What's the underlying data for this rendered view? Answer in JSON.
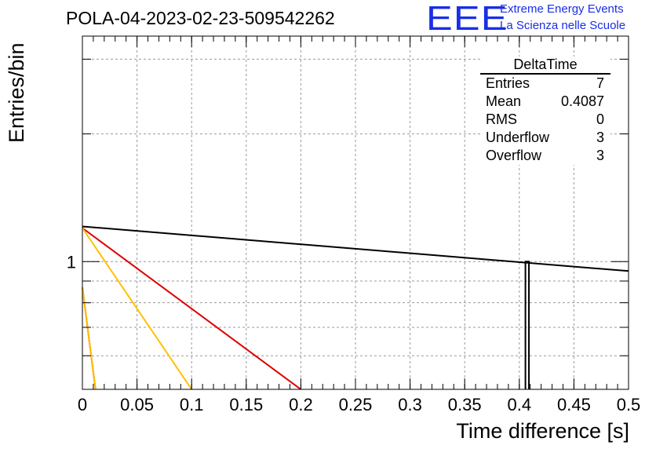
{
  "header": {
    "run_title": "POLA-04-2023-02-23-509542262",
    "logo_mark": "EEE",
    "logo_line1": "Extreme Energy Events",
    "logo_line2": "La Scienza nelle Scuole"
  },
  "stats_box": {
    "title": "DeltaTime",
    "rows": [
      {
        "label": "Entries",
        "value": "7"
      },
      {
        "label": "Mean",
        "value": "0.4087"
      },
      {
        "label": "RMS",
        "value": "0"
      },
      {
        "label": "Underflow",
        "value": "3"
      },
      {
        "label": "Overflow",
        "value": "3"
      }
    ]
  },
  "chart_data": {
    "type": "line",
    "title": "POLA-04-2023-02-23-509542262",
    "xlabel": "Time difference [s]",
    "ylabel": "Entries/bin",
    "xlim": [
      0,
      0.5
    ],
    "ylog": true,
    "ylim": [
      0.5,
      3.4
    ],
    "x_ticks": [
      0,
      0.05,
      0.1,
      0.15,
      0.2,
      0.25,
      0.3,
      0.35,
      0.4,
      0.45,
      0.5
    ],
    "x_tick_labels": [
      "0",
      "0.05",
      "0.1",
      "0.15",
      "0.2",
      "0.25",
      "0.3",
      "0.35",
      "0.4",
      "0.45",
      "0.5"
    ],
    "y_ticks_labeled": [
      1
    ],
    "y_tick_labels": [
      "1"
    ],
    "y_minor_ticks": [
      0.6,
      0.7,
      0.8,
      0.9,
      2,
      3
    ],
    "grid": true,
    "histogram": {
      "name": "DeltaTime",
      "bins": [
        {
          "x0": 0.4056,
          "x1": 0.4088,
          "count": 1
        }
      ]
    },
    "series": [
      {
        "color": "#000000",
        "x": [
          0,
          0.5
        ],
        "y": [
          1.21,
          0.95
        ]
      },
      {
        "color": "#dd0000",
        "x": [
          0,
          0.2
        ],
        "y": [
          1.2,
          0.5
        ]
      },
      {
        "color": "#ffc000",
        "x": [
          0,
          0.1
        ],
        "y": [
          1.2,
          0.5
        ]
      },
      {
        "color": "#dd0000",
        "x": [
          0,
          0.012
        ],
        "y": [
          0.87,
          0.5
        ]
      },
      {
        "color": "#ffc000",
        "x": [
          0,
          0.012
        ],
        "y": [
          0.87,
          0.5
        ]
      }
    ]
  }
}
